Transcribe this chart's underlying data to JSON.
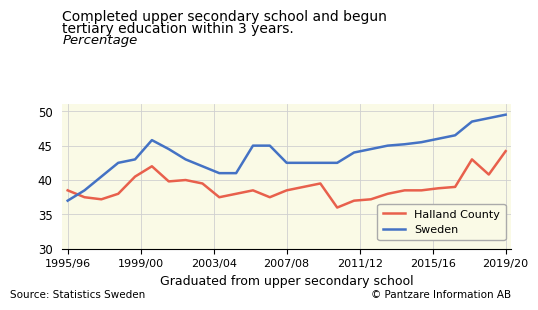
{
  "title_line1": "Completed upper secondary school and begun",
  "title_line2": "tertiary education within 3 years.",
  "title_line3": "Percentage",
  "xlabel": "Graduated from upper secondary school",
  "source_left": "Source: Statistics Sweden",
  "source_right": "© Pantzare Information AB",
  "fig_bg_color": "#ffffff",
  "plot_bg_color": "#fafae6",
  "ylim": [
    30,
    51
  ],
  "yticks": [
    30,
    35,
    40,
    45,
    50
  ],
  "x_labels": [
    "1995/96",
    "1999/00",
    "2003/04",
    "2007/08",
    "2011/12",
    "2015/16",
    "2019/20"
  ],
  "x_positions": [
    0,
    4,
    8,
    12,
    16,
    20,
    24
  ],
  "halland_label": "Halland County",
  "sweden_label": "Sweden",
  "halland_color": "#e8604c",
  "sweden_color": "#4472c4",
  "halland_data": [
    38.5,
    37.5,
    37.2,
    38.0,
    40.5,
    42.0,
    39.8,
    40.0,
    39.5,
    37.5,
    38.0,
    38.5,
    37.5,
    38.5,
    39.0,
    39.5,
    36.0,
    37.0,
    37.2,
    38.0,
    38.5,
    38.5,
    38.8,
    39.0,
    43.0,
    40.8,
    44.2
  ],
  "sweden_data": [
    37.0,
    38.5,
    40.5,
    42.5,
    43.0,
    45.8,
    44.5,
    43.0,
    42.0,
    41.0,
    41.0,
    45.0,
    45.0,
    42.5,
    42.5,
    42.5,
    42.5,
    44.0,
    44.5,
    45.0,
    45.2,
    45.5,
    46.0,
    46.5,
    48.5,
    49.0,
    49.5
  ]
}
